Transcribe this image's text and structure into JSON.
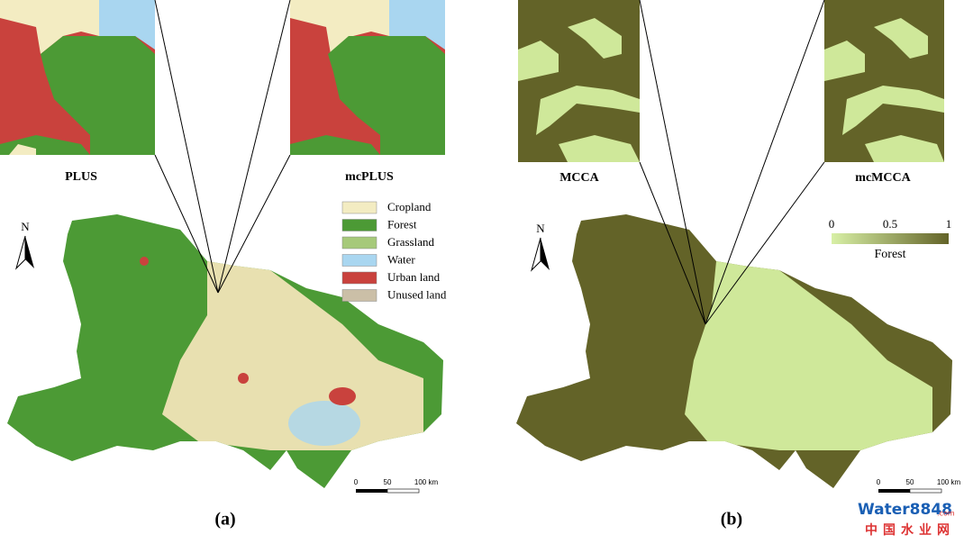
{
  "panel_a": {
    "insets": [
      {
        "label": "PLUS"
      },
      {
        "label": "mcPLUS"
      }
    ],
    "legend": [
      {
        "label": "Cropland",
        "color": "#f3ecc2"
      },
      {
        "label": "Forest",
        "color": "#4c9a35"
      },
      {
        "label": "Grassland",
        "color": "#a6c97a"
      },
      {
        "label": "Water",
        "color": "#a9d6f0"
      },
      {
        "label": "Urban land",
        "color": "#c9423d"
      },
      {
        "label": "Unused land",
        "color": "#cbbfa7"
      }
    ],
    "north": "N",
    "scale": [
      "0",
      "50",
      "100 km"
    ],
    "caption": "(a)"
  },
  "panel_b": {
    "insets": [
      {
        "label": "MCCA"
      },
      {
        "label": "mcMCCA"
      }
    ],
    "colorbar": {
      "ticks": [
        "0",
        "0.5",
        "1"
      ],
      "label": "Forest"
    },
    "north": "N",
    "scale": [
      "0",
      "50",
      "100 km"
    ],
    "caption": "(b)"
  },
  "watermark": {
    "brand": "Water8848",
    "domain": ".com",
    "name": "中国水业网"
  }
}
